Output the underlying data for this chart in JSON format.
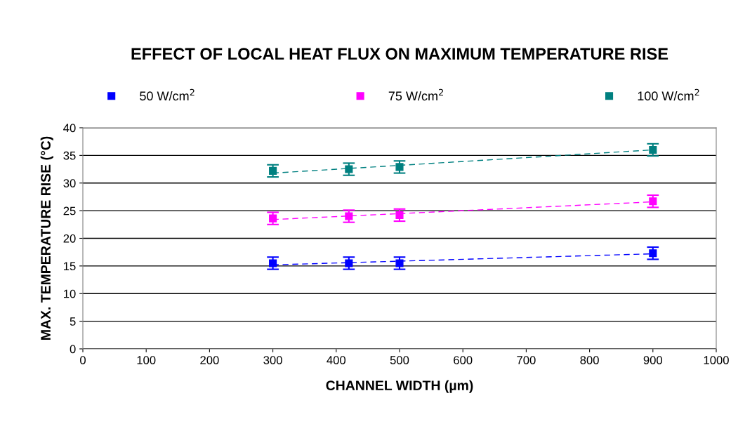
{
  "chart_data": {
    "type": "scatter",
    "title": "EFFECT OF LOCAL HEAT FLUX ON MAXIMUM TEMPERATURE RISE",
    "xlabel": "CHANNEL WIDTH (µm)",
    "ylabel": "MAX. TEMPERATURE RISE (°C)",
    "xlim": [
      0,
      1000
    ],
    "xticks": [
      0,
      100,
      200,
      300,
      400,
      500,
      600,
      700,
      800,
      900,
      1000
    ],
    "ylim": [
      0,
      40
    ],
    "yticks": [
      0,
      5,
      10,
      15,
      20,
      25,
      30,
      35,
      40
    ],
    "grid": "y",
    "legend": "top",
    "marker": "square",
    "series": [
      {
        "name": "50 W/cm$^{2}$",
        "color": "#0000ff",
        "x": [
          300,
          420,
          500,
          900
        ],
        "values": [
          15.5,
          15.5,
          15.5,
          17.3
        ],
        "errors": [
          1.1,
          1.1,
          1.1,
          1.1
        ]
      },
      {
        "name": "75 W/cm$^{2}$",
        "color": "#ff00ff",
        "x": [
          300,
          420,
          500,
          900
        ],
        "values": [
          23.6,
          24.0,
          24.2,
          26.7
        ],
        "errors": [
          1.1,
          1.1,
          1.1,
          1.1
        ]
      },
      {
        "name": "100 W/cm$^{2}$",
        "color": "#008080",
        "x": [
          300,
          420,
          500,
          900
        ],
        "values": [
          32.2,
          32.5,
          32.9,
          36.0
        ],
        "errors": [
          1.1,
          1.1,
          1.1,
          1.1
        ]
      },
      {
        "type": "line",
        "line_style": "dashed",
        "marker": "none",
        "color": "#0000ff",
        "x": [
          300,
          900
        ],
        "values": [
          15.2,
          17.2
        ]
      },
      {
        "type": "line",
        "line_style": "dashed",
        "marker": "none",
        "color": "#ff00ff",
        "x": [
          300,
          900
        ],
        "values": [
          23.4,
          26.6
        ]
      },
      {
        "type": "line",
        "line_style": "dashed",
        "marker": "none",
        "color": "#008080",
        "x": [
          300,
          900
        ],
        "values": [
          31.8,
          36.0
        ]
      }
    ]
  }
}
